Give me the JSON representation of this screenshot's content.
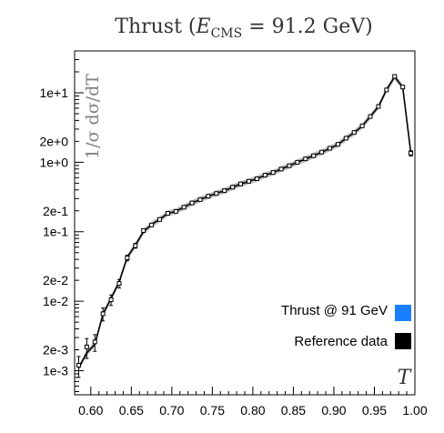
{
  "chart_data": {
    "type": "line",
    "title": "Thrust  (E_CMS = 91.2  GeV)",
    "title_parts": {
      "prefix": "Thrust  (",
      "var": "E",
      "sub": "CMS",
      "suffix": " = 91.2  GeV)"
    },
    "ylabel": "1/σ  dσ/dT",
    "xlabel": "T",
    "xlim": [
      0.58,
      1.0
    ],
    "ylim": [
      0.00045,
      40
    ],
    "yscale": "log",
    "grid": false,
    "legend_position": "bottom-right",
    "x_ticks": [
      "0.60",
      "0.65",
      "0.70",
      "0.75",
      "0.80",
      "0.85",
      "0.90",
      "0.95",
      "1.00"
    ],
    "y_ticks": [
      {
        "label": "1e+1",
        "value": 10
      },
      {
        "label": "2e+0",
        "value": 2
      },
      {
        "label": "1e+0",
        "value": 1
      },
      {
        "label": "2e-1",
        "value": 0.2
      },
      {
        "label": "1e-1",
        "value": 0.1
      },
      {
        "label": "2e-2",
        "value": 0.02
      },
      {
        "label": "1e-2",
        "value": 0.01
      },
      {
        "label": "2e-3",
        "value": 0.002
      },
      {
        "label": "1e-3",
        "value": 0.001
      }
    ],
    "series": [
      {
        "name": "Thrust @ 91 GeV",
        "color": "#1a7fff",
        "x": [
          0.585,
          0.595,
          0.605,
          0.615,
          0.625,
          0.635,
          0.645,
          0.655,
          0.665,
          0.675,
          0.685,
          0.695,
          0.705,
          0.715,
          0.725,
          0.735,
          0.745,
          0.755,
          0.765,
          0.775,
          0.785,
          0.795,
          0.805,
          0.815,
          0.825,
          0.835,
          0.845,
          0.855,
          0.865,
          0.875,
          0.885,
          0.895,
          0.905,
          0.915,
          0.925,
          0.935,
          0.945,
          0.955,
          0.965,
          0.975,
          0.985,
          0.995
        ],
        "y": [
          0.0011,
          0.0018,
          0.0024,
          0.0065,
          0.011,
          0.019,
          0.043,
          0.064,
          0.1,
          0.127,
          0.151,
          0.183,
          0.197,
          0.226,
          0.259,
          0.291,
          0.323,
          0.357,
          0.389,
          0.437,
          0.486,
          0.53,
          0.58,
          0.65,
          0.71,
          0.8,
          0.89,
          1.0,
          1.11,
          1.25,
          1.39,
          1.58,
          1.8,
          2.21,
          2.66,
          3.32,
          4.56,
          6.31,
          11.0,
          17.0,
          12.0,
          1.36
        ]
      },
      {
        "name": "Reference data",
        "color": "#000000",
        "x": [
          0.585,
          0.595,
          0.605,
          0.615,
          0.625,
          0.635,
          0.645,
          0.655,
          0.665,
          0.675,
          0.685,
          0.695,
          0.705,
          0.715,
          0.725,
          0.735,
          0.745,
          0.755,
          0.765,
          0.775,
          0.785,
          0.795,
          0.805,
          0.815,
          0.825,
          0.835,
          0.845,
          0.855,
          0.865,
          0.875,
          0.885,
          0.895,
          0.905,
          0.915,
          0.925,
          0.935,
          0.945,
          0.955,
          0.965,
          0.975,
          0.985,
          0.995
        ],
        "y": [
          0.0012,
          0.0022,
          0.0026,
          0.0066,
          0.0105,
          0.018,
          0.042,
          0.063,
          0.104,
          0.125,
          0.15,
          0.184,
          0.196,
          0.225,
          0.26,
          0.29,
          0.325,
          0.355,
          0.39,
          0.438,
          0.488,
          0.532,
          0.578,
          0.652,
          0.712,
          0.798,
          0.892,
          1.0,
          1.12,
          1.24,
          1.4,
          1.59,
          1.81,
          2.22,
          2.68,
          3.34,
          4.55,
          6.35,
          11.0,
          17.2,
          12.1,
          1.35
        ],
        "err": [
          0.0004,
          0.0007,
          0.0007,
          0.0014,
          0.0018,
          0.0025,
          0.004,
          0.005,
          0.006,
          0.006,
          0.007,
          0.008,
          0.008,
          0.009,
          0.01,
          0.011,
          0.012,
          0.013,
          0.014,
          0.015,
          0.016,
          0.017,
          0.018,
          0.02,
          0.022,
          0.025,
          0.028,
          0.03,
          0.034,
          0.038,
          0.042,
          0.048,
          0.055,
          0.066,
          0.08,
          0.1,
          0.14,
          0.19,
          0.33,
          0.52,
          0.4,
          0.12
        ]
      }
    ]
  }
}
